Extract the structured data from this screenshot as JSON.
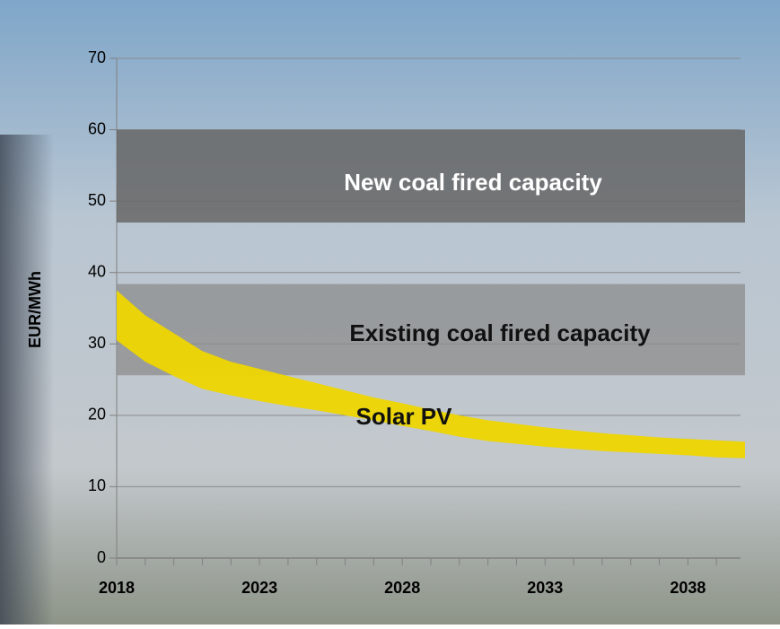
{
  "chart_data": {
    "type": "band",
    "y_label": "EUR/MWh",
    "xlim": [
      2018,
      2040
    ],
    "xticks": [
      2018,
      2023,
      2028,
      2033,
      2038
    ],
    "ylim": [
      0,
      70
    ],
    "yticks": [
      0,
      10,
      20,
      30,
      40,
      50,
      60,
      70
    ],
    "grid": true,
    "series": [
      {
        "name": "New coal fired capacity",
        "color": "#666666",
        "x": [
          2018,
          2040
        ],
        "lower": [
          47,
          47
        ],
        "upper": [
          60,
          60
        ]
      },
      {
        "name": "Existing coal fired capacity",
        "color": "#8c8c8c",
        "x": [
          2018,
          2040
        ],
        "lower": [
          25.6,
          25.6
        ],
        "upper": [
          38.4,
          38.4
        ]
      },
      {
        "name": "Solar PV",
        "color": "#eed600",
        "x": [
          2018,
          2019,
          2020,
          2021,
          2022,
          2023,
          2024,
          2025,
          2026,
          2027,
          2028,
          2029,
          2030,
          2031,
          2032,
          2033,
          2034,
          2035,
          2036,
          2037,
          2038,
          2039,
          2040
        ],
        "lower": [
          30.5,
          27.5,
          25.5,
          23.7,
          22.8,
          22,
          21.3,
          20.7,
          20,
          19.3,
          18.5,
          17.8,
          17,
          16.4,
          16,
          15.6,
          15.3,
          15,
          14.8,
          14.6,
          14.4,
          14.1,
          14
        ],
        "upper": [
          37.5,
          34,
          31.5,
          29,
          27.5,
          26.5,
          25.5,
          24.5,
          23.5,
          22.5,
          21.7,
          20.8,
          20,
          19.3,
          18.8,
          18.3,
          17.9,
          17.5,
          17.2,
          16.9,
          16.7,
          16.5,
          16.3
        ]
      }
    ]
  }
}
